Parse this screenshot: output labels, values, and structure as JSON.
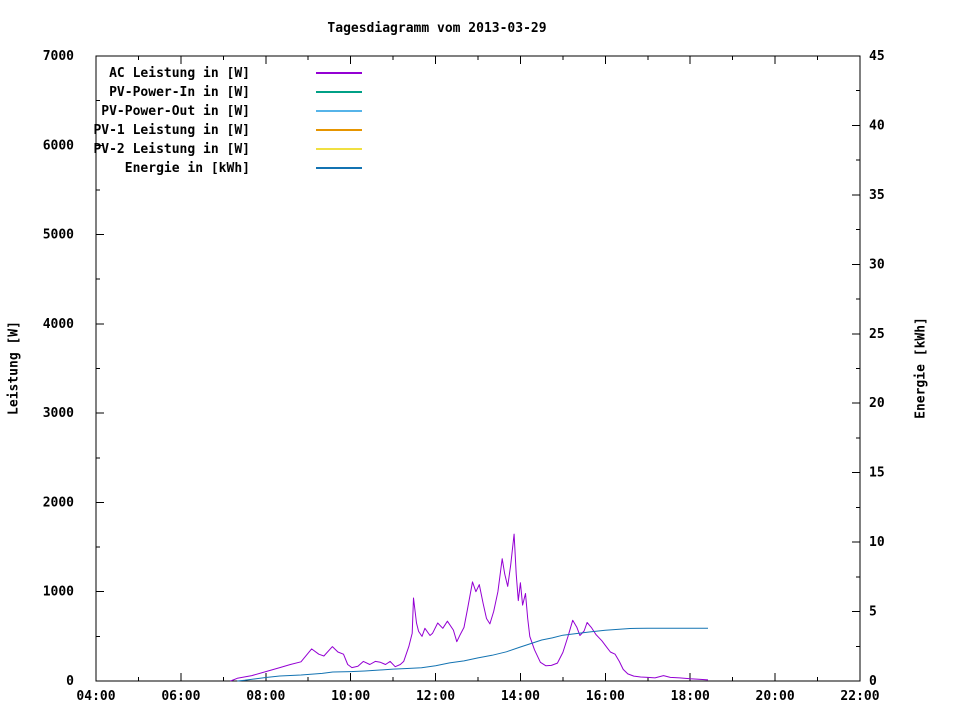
{
  "chart": {
    "title": "Tagesdiagramm vom 2013-03-29",
    "ylabel": "Leistung [W]",
    "y2label": "Energie [kWh]"
  },
  "chart_data": {
    "type": "line",
    "title": "Tagesdiagramm vom 2013-03-29",
    "xlabel": "",
    "ylabel": "Leistung [W]",
    "y2label": "Energie [kWh]",
    "grid": false,
    "legend_position": "top-left-inside",
    "x_axis": {
      "kind": "time-of-day",
      "range_hours": [
        4,
        22
      ],
      "major_step_hours": 2,
      "minor_step_hours": 1,
      "tick_labels": [
        "04:00",
        "06:00",
        "08:00",
        "10:00",
        "12:00",
        "14:00",
        "16:00",
        "18:00",
        "20:00",
        "22:00"
      ]
    },
    "y_axis": {
      "label": "Leistung [W]",
      "range": [
        0,
        7000
      ],
      "major_step": 1000,
      "minor_step": 500,
      "tick_labels": [
        "0",
        "1000",
        "2000",
        "3000",
        "4000",
        "5000",
        "6000",
        "7000"
      ]
    },
    "y2_axis": {
      "label": "Energie [kWh]",
      "range": [
        0,
        45
      ],
      "major_step": 5,
      "minor_step": 2.5,
      "tick_labels": [
        "0",
        "5",
        "10",
        "15",
        "20",
        "25",
        "30",
        "35",
        "40",
        "45"
      ]
    },
    "series": [
      {
        "name": "AC Leistung in [W]",
        "color": "#9400d3",
        "axis": "y",
        "points": [
          [
            7.17,
            0
          ],
          [
            7.33,
            30
          ],
          [
            7.67,
            60
          ],
          [
            8,
            105
          ],
          [
            8.33,
            150
          ],
          [
            8.58,
            185
          ],
          [
            8.83,
            215
          ],
          [
            9.08,
            360
          ],
          [
            9.25,
            300
          ],
          [
            9.37,
            280
          ],
          [
            9.57,
            385
          ],
          [
            9.7,
            325
          ],
          [
            9.83,
            300
          ],
          [
            9.93,
            185
          ],
          [
            10.03,
            150
          ],
          [
            10.17,
            165
          ],
          [
            10.3,
            220
          ],
          [
            10.45,
            185
          ],
          [
            10.58,
            220
          ],
          [
            10.7,
            210
          ],
          [
            10.82,
            185
          ],
          [
            10.93,
            220
          ],
          [
            11.05,
            160
          ],
          [
            11.17,
            185
          ],
          [
            11.25,
            220
          ],
          [
            11.37,
            385
          ],
          [
            11.45,
            535
          ],
          [
            11.48,
            930
          ],
          [
            11.55,
            650
          ],
          [
            11.6,
            555
          ],
          [
            11.68,
            500
          ],
          [
            11.75,
            590
          ],
          [
            11.87,
            510
          ],
          [
            11.93,
            535
          ],
          [
            12.05,
            650
          ],
          [
            12.17,
            590
          ],
          [
            12.28,
            670
          ],
          [
            12.42,
            570
          ],
          [
            12.5,
            440
          ],
          [
            12.58,
            520
          ],
          [
            12.67,
            600
          ],
          [
            12.75,
            800
          ],
          [
            12.87,
            1110
          ],
          [
            12.95,
            1000
          ],
          [
            13.03,
            1080
          ],
          [
            13.12,
            870
          ],
          [
            13.2,
            700
          ],
          [
            13.28,
            640
          ],
          [
            13.37,
            780
          ],
          [
            13.47,
            1000
          ],
          [
            13.57,
            1370
          ],
          [
            13.63,
            1200
          ],
          [
            13.7,
            1060
          ],
          [
            13.77,
            1300
          ],
          [
            13.85,
            1645
          ],
          [
            13.9,
            1200
          ],
          [
            13.95,
            900
          ],
          [
            14,
            1100
          ],
          [
            14.05,
            850
          ],
          [
            14.12,
            980
          ],
          [
            14.17,
            700
          ],
          [
            14.22,
            500
          ],
          [
            14.33,
            350
          ],
          [
            14.47,
            210
          ],
          [
            14.6,
            170
          ],
          [
            14.73,
            175
          ],
          [
            14.87,
            200
          ],
          [
            15,
            320
          ],
          [
            15.12,
            500
          ],
          [
            15.23,
            680
          ],
          [
            15.33,
            600
          ],
          [
            15.4,
            510
          ],
          [
            15.5,
            560
          ],
          [
            15.57,
            655
          ],
          [
            15.67,
            600
          ],
          [
            15.78,
            520
          ],
          [
            15.92,
            450
          ],
          [
            16.03,
            380
          ],
          [
            16.12,
            325
          ],
          [
            16.23,
            300
          ],
          [
            16.33,
            220
          ],
          [
            16.42,
            130
          ],
          [
            16.53,
            80
          ],
          [
            16.67,
            55
          ],
          [
            16.83,
            45
          ],
          [
            17,
            40
          ],
          [
            17.17,
            35
          ],
          [
            17.37,
            60
          ],
          [
            17.53,
            40
          ],
          [
            17.75,
            35
          ],
          [
            18,
            25
          ],
          [
            18.2,
            20
          ],
          [
            18.42,
            12
          ]
        ]
      },
      {
        "name": "PV-Power-In in [W]",
        "color": "#00a086",
        "axis": "y",
        "points": []
      },
      {
        "name": "PV-Power-Out in [W]",
        "color": "#56b4e9",
        "axis": "y",
        "points": []
      },
      {
        "name": "PV-1 Leistung in [W]",
        "color": "#e69500",
        "axis": "y",
        "points": []
      },
      {
        "name": "PV-2 Leistung in [W]",
        "color": "#f0e041",
        "axis": "y",
        "points": []
      },
      {
        "name": "Energie in [kWh]",
        "color": "#1373b2",
        "axis": "y2",
        "points": [
          [
            7.33,
            0
          ],
          [
            7.5,
            0.05
          ],
          [
            7.75,
            0.15
          ],
          [
            8,
            0.25
          ],
          [
            8.33,
            0.36
          ],
          [
            8.83,
            0.43
          ],
          [
            9.33,
            0.55
          ],
          [
            9.58,
            0.65
          ],
          [
            10,
            0.68
          ],
          [
            10.33,
            0.72
          ],
          [
            10.75,
            0.8
          ],
          [
            11,
            0.86
          ],
          [
            11.33,
            0.9
          ],
          [
            11.67,
            0.95
          ],
          [
            12,
            1.1
          ],
          [
            12.33,
            1.3
          ],
          [
            12.67,
            1.45
          ],
          [
            13,
            1.66
          ],
          [
            13.33,
            1.85
          ],
          [
            13.67,
            2.1
          ],
          [
            14,
            2.45
          ],
          [
            14.25,
            2.7
          ],
          [
            14.5,
            2.95
          ],
          [
            14.75,
            3.1
          ],
          [
            15,
            3.3
          ],
          [
            15.33,
            3.42
          ],
          [
            15.67,
            3.55
          ],
          [
            16,
            3.65
          ],
          [
            16.33,
            3.72
          ],
          [
            16.58,
            3.78
          ],
          [
            17,
            3.8
          ],
          [
            17.5,
            3.8
          ],
          [
            18,
            3.8
          ],
          [
            18.42,
            3.8
          ]
        ]
      }
    ]
  }
}
